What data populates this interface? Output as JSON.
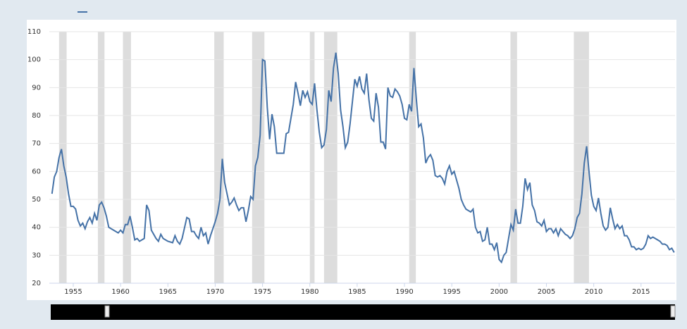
{
  "chart_data": {
    "type": "line",
    "x": [
      1952.75,
      1953,
      1953.25,
      1953.5,
      1953.75,
      1954,
      1954.25,
      1954.5,
      1954.75,
      1955,
      1955.25,
      1955.5,
      1955.75,
      1956,
      1956.25,
      1956.5,
      1956.75,
      1957,
      1957.25,
      1957.5,
      1957.75,
      1958,
      1958.25,
      1958.5,
      1958.75,
      1959.25,
      1959.75,
      1960,
      1960.25,
      1960.5,
      1960.75,
      1961,
      1961.25,
      1961.5,
      1961.75,
      1962,
      1962.5,
      1962.75,
      1963,
      1963.25,
      1963.75,
      1964,
      1964.25,
      1964.5,
      1965,
      1965.5,
      1965.75,
      1966,
      1966.25,
      1966.5,
      1967,
      1967.25,
      1967.5,
      1967.75,
      1968,
      1968.25,
      1968.5,
      1968.75,
      1969,
      1969.25,
      1969.5,
      1969.75,
      1970,
      1970.25,
      1970.5,
      1970.75,
      1971,
      1971.25,
      1971.5,
      1971.75,
      1972,
      1972.25,
      1972.5,
      1972.75,
      1973,
      1973.25,
      1973.5,
      1973.75,
      1974,
      1974.25,
      1974.5,
      1974.75,
      1975,
      1975.25,
      1975.5,
      1975.75,
      1976,
      1976.25,
      1976.5,
      1977,
      1977.25,
      1977.5,
      1977.75,
      1978,
      1978.25,
      1978.5,
      1978.75,
      1979,
      1979.25,
      1979.5,
      1979.75,
      1980,
      1980.25,
      1980.5,
      1980.75,
      1981,
      1981.25,
      1981.5,
      1981.75,
      1982,
      1982.25,
      1982.5,
      1982.75,
      1983,
      1983.25,
      1983.5,
      1983.75,
      1984,
      1984.25,
      1984.5,
      1984.75,
      1985,
      1985.25,
      1985.5,
      1985.75,
      1986,
      1986.25,
      1986.5,
      1986.75,
      1987,
      1987.25,
      1987.5,
      1987.75,
      1988,
      1988.25,
      1988.5,
      1988.75,
      1989,
      1989.25,
      1989.5,
      1989.75,
      1990,
      1990.25,
      1990.5,
      1990.75,
      1991,
      1991.25,
      1991.5,
      1991.75,
      1992,
      1992.25,
      1992.5,
      1992.75,
      1993,
      1993.25,
      1993.5,
      1993.75,
      1994,
      1994.25,
      1994.5,
      1994.75,
      1995,
      1995.25,
      1995.5,
      1995.75,
      1996,
      1996.25,
      1996.5,
      1996.75,
      1997,
      1997.25,
      1997.5,
      1997.75,
      1998,
      1998.25,
      1998.5,
      1998.75,
      1999,
      1999.25,
      1999.5,
      1999.75,
      2000,
      2000.25,
      2000.5,
      2000.75,
      2001,
      2001.25,
      2001.5,
      2001.75,
      2002,
      2002.25,
      2002.5,
      2002.75,
      2003,
      2003.25,
      2003.5,
      2003.75,
      2004,
      2004.25,
      2004.5,
      2004.75,
      2005,
      2005.25,
      2005.5,
      2005.75,
      2006,
      2006.25,
      2006.5,
      2006.75,
      2007,
      2007.25,
      2007.5,
      2007.75,
      2008,
      2008.25,
      2008.5,
      2008.75,
      2009,
      2009.25,
      2009.5,
      2009.75,
      2010,
      2010.25,
      2010.5,
      2010.75,
      2011,
      2011.25,
      2011.5,
      2011.75,
      2012,
      2012.25,
      2012.5,
      2012.75,
      2013,
      2013.25,
      2013.5,
      2013.75,
      2014,
      2014.25,
      2014.5,
      2014.75,
      2015,
      2015.25,
      2015.5,
      2015.75,
      2016,
      2016.25,
      2016.5,
      2016.75,
      2017,
      2017.25,
      2017.5,
      2017.75,
      2018,
      2018.25,
      2018.5
    ],
    "series": [
      {
        "color": "#4572a7",
        "values": [
          52,
          58,
          60,
          65,
          68,
          62,
          58,
          52,
          47.5,
          47.5,
          46.5,
          42.5,
          40.5,
          41.5,
          39.5,
          42,
          43.5,
          41.5,
          45,
          42.5,
          48,
          49,
          47,
          44,
          40,
          39,
          38,
          39,
          38,
          41,
          41,
          44,
          40,
          35.5,
          36,
          35,
          36,
          48,
          46,
          39,
          36,
          35,
          37.5,
          36,
          35,
          34.5,
          37,
          35,
          34,
          36,
          43.5,
          43,
          38.5,
          38.5,
          37,
          36,
          40,
          37,
          38,
          34,
          37,
          39.5,
          42,
          45,
          50,
          64.5,
          56,
          52,
          48,
          49,
          50.5,
          48,
          46,
          47,
          47,
          42,
          46,
          51,
          50,
          62,
          65,
          73,
          100,
          99.5,
          83,
          71.5,
          80.5,
          76,
          66.5,
          66.5,
          66.5,
          73.5,
          74,
          79,
          84,
          92,
          88,
          83.5,
          89,
          86.5,
          88.5,
          85,
          84,
          91.5,
          82,
          74,
          68.5,
          69.5,
          75,
          89,
          85,
          97,
          102.5,
          95,
          82,
          76,
          68.5,
          70.5,
          77,
          85,
          93,
          90.5,
          94,
          89.5,
          88,
          95,
          85.5,
          79,
          78,
          88,
          83,
          70.5,
          70.5,
          68,
          90,
          87,
          86.5,
          89.5,
          88.5,
          87,
          84,
          79,
          78.5,
          84,
          81.5,
          97,
          86,
          76,
          77,
          72,
          63,
          65,
          66,
          64,
          58.5,
          58,
          58.5,
          57.5,
          55.5,
          60,
          62,
          59,
          60,
          57,
          54,
          50,
          48,
          46.5,
          46,
          45.5,
          46.5,
          40,
          38,
          38.5,
          35,
          35.5,
          40,
          34,
          34,
          32,
          34.5,
          28.5,
          27.5,
          30,
          31,
          36,
          41,
          39,
          46.5,
          41.5,
          41.5,
          47.5,
          57.5,
          53.5,
          56,
          48,
          46,
          42,
          41.5,
          40.5,
          42.5,
          38.5,
          39.5,
          39.5,
          38,
          39.5,
          37,
          39.5,
          38.5,
          37.5,
          37,
          36,
          37,
          39.5,
          43.5,
          45,
          52,
          63,
          69,
          60,
          51.5,
          47.5,
          46,
          50.5,
          45,
          40.5,
          39,
          40,
          47,
          43,
          39.5,
          41,
          39.5,
          40.5,
          37,
          37,
          35.5,
          33,
          33,
          32,
          32.5,
          32,
          32.5,
          34,
          37,
          36,
          36.5,
          36,
          35.5,
          35,
          34,
          34,
          33.5,
          32,
          32.5,
          31
        ]
      }
    ],
    "recessions": [
      [
        1953.5,
        1954.3
      ],
      [
        1957.6,
        1958.3
      ],
      [
        1960.25,
        1961.1
      ],
      [
        1969.9,
        1970.9
      ],
      [
        1973.9,
        1975.2
      ],
      [
        1980.0,
        1980.5
      ],
      [
        1981.5,
        1982.9
      ],
      [
        1990.5,
        1991.2
      ],
      [
        2001.2,
        2001.9
      ],
      [
        2007.9,
        2009.5
      ]
    ],
    "recession_color": "#dddddd",
    "xlim": [
      1952.47,
      2018.59
    ],
    "ylim": [
      20,
      110
    ],
    "xticks": [
      1955,
      1960,
      1965,
      1970,
      1975,
      1980,
      1985,
      1990,
      1995,
      2000,
      2005,
      2010,
      2015
    ],
    "yticks": [
      20,
      30,
      40,
      50,
      60,
      70,
      80,
      90,
      100,
      110
    ],
    "grid": true
  }
}
